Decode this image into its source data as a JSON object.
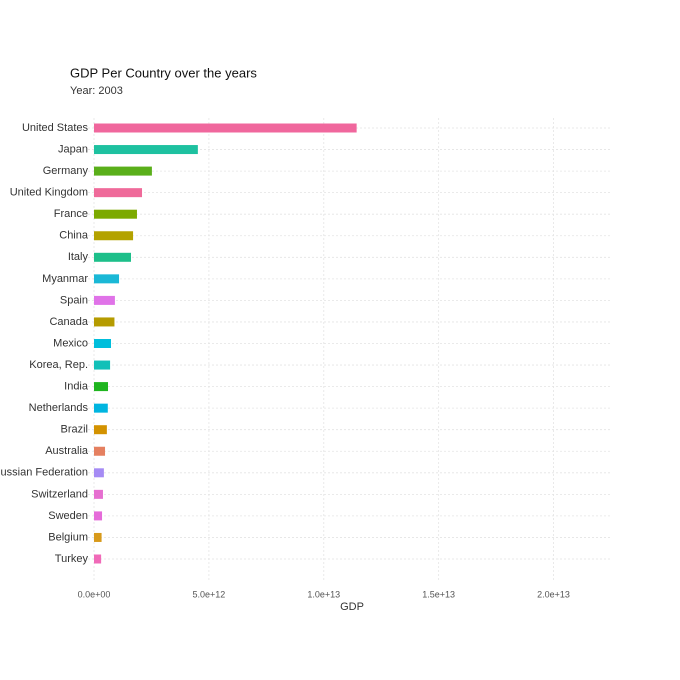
{
  "chart_data": {
    "type": "bar",
    "orientation": "horizontal",
    "title": "GDP Per Country over the years",
    "subtitle": "Year: 2003",
    "x_label": "GDP",
    "categories": [
      "United States",
      "Japan",
      "Germany",
      "United Kingdom",
      "France",
      "China",
      "Italy",
      "Myanmar",
      "Spain",
      "Canada",
      "Mexico",
      "Korea, Rep.",
      "India",
      "Netherlands",
      "Brazil",
      "Australia",
      "Russian Federation",
      "Switzerland",
      "Sweden",
      "Belgium",
      "Turkey"
    ],
    "values": [
      11430000000000,
      4520000000000,
      2520000000000,
      2090000000000,
      1870000000000,
      1700000000000,
      1610000000000,
      1090000000000,
      910000000000,
      890000000000,
      740000000000,
      700000000000,
      610000000000,
      600000000000,
      560000000000,
      480000000000,
      430000000000,
      390000000000,
      350000000000,
      330000000000,
      310000000000
    ],
    "colors": [
      "#f0679d",
      "#1ec1a0",
      "#5aaf1a",
      "#ef6a9a",
      "#7caa00",
      "#b3a200",
      "#1dbf8a",
      "#1ab8d6",
      "#e073e8",
      "#b59b00",
      "#00bedc",
      "#12c0b8",
      "#1fb51f",
      "#00b5e0",
      "#d39200",
      "#e58060",
      "#a58bf4",
      "#e66fd0",
      "#e56bd9",
      "#d89a1a",
      "#f06ab8"
    ],
    "xlim": [
      0,
      22500000000000
    ],
    "xticks": [
      {
        "value": 0,
        "label": "0.0e+00"
      },
      {
        "value": 5000000000000,
        "label": "5.0e+12"
      },
      {
        "value": 10000000000000,
        "label": "1.0e+13"
      },
      {
        "value": 15000000000000,
        "label": "1.5e+13"
      },
      {
        "value": 20000000000000,
        "label": "2.0e+13"
      }
    ],
    "grid": true
  }
}
